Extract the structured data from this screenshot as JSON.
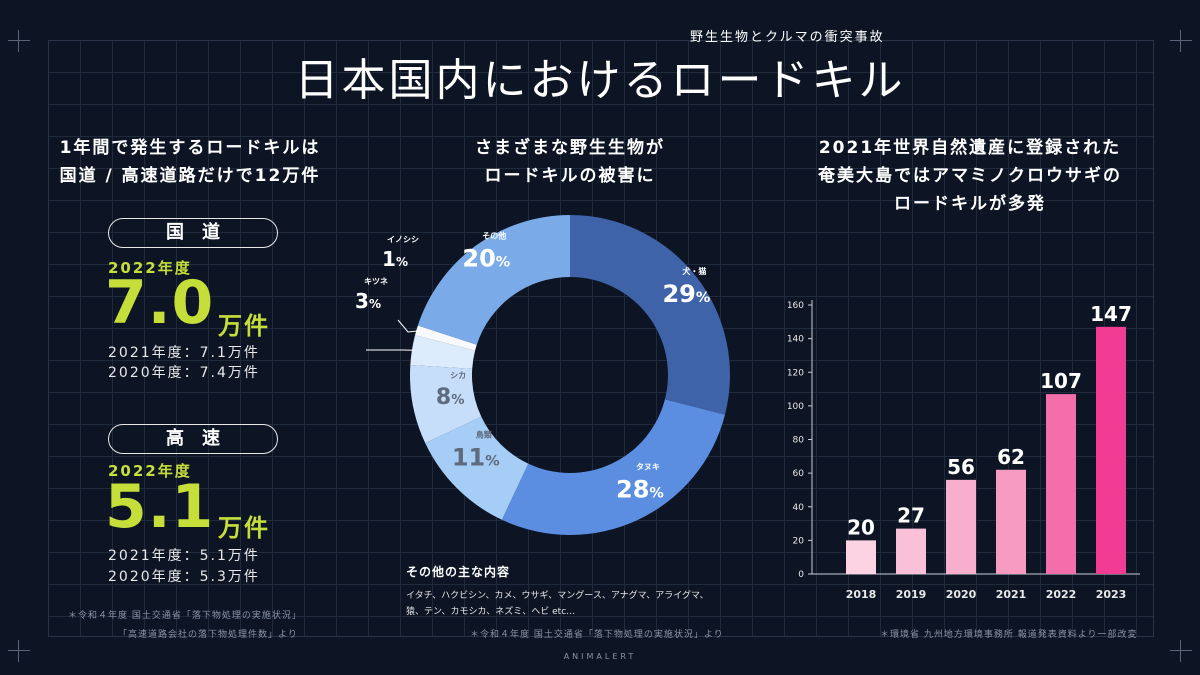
{
  "header": {
    "subtitle": "野生生物とクルマの衝突事故",
    "title": "日本国内におけるロードキル"
  },
  "left": {
    "heading_line1": "1年間で発生するロードキルは",
    "heading_line2": "国道 / 高速道路だけで12万件",
    "national": {
      "label": "国道",
      "year": "2022年度",
      "value": "7.0",
      "unit": "万件",
      "prev1": "2021年度：7.1万件",
      "prev2": "2020年度：7.4万件"
    },
    "highway": {
      "label": "高速",
      "year": "2022年度",
      "value": "5.1",
      "unit": "万件",
      "prev1": "2021年度：5.1万件",
      "prev2": "2020年度：5.3万件"
    },
    "note1": "＊令和４年度 国土交通省「落下物処理の実施状況」",
    "note2": "「高速道路会社の落下物処理件数」より"
  },
  "middle": {
    "heading_line1": "さまざまな野生生物が",
    "heading_line2": "ロードキルの被害に",
    "other_title": "その他の主な内容",
    "other_line1": "イタチ、ハクビシン、カメ、ウサギ、マングース、アナグマ、アライグマ、",
    "other_line2": "猿、テン、カモシカ、ネズミ、ヘビ etc…",
    "note": "＊令和４年度 国土交通省「落下物処理の実施状況」より"
  },
  "right": {
    "heading_line1": "2021年世界自然遺産に登録された",
    "heading_line2": "奄美大島ではアマミノクロウサギの",
    "heading_line3": "ロードキルが多発",
    "note": "＊環境省 九州地方環境事務所 報道発表資料より一部改変"
  },
  "brand": "ANIMALERT",
  "colors": {
    "background": "#0d1524",
    "accent_green": "#c5de3a"
  },
  "chart_data": [
    {
      "type": "pie",
      "title": "",
      "slices": [
        {
          "label": "犬・猫",
          "value": 29,
          "color": "#3f63a8",
          "text_color": "#ffffff"
        },
        {
          "label": "タヌキ",
          "value": 28,
          "color": "#5b8ee0",
          "text_color": "#ffffff"
        },
        {
          "label": "鳥類",
          "value": 11,
          "color": "#a6cdf5",
          "text_color": "#5f6b7d"
        },
        {
          "label": "シカ",
          "value": 8,
          "color": "#c6defa",
          "text_color": "#5f6b7d"
        },
        {
          "label": "キツネ",
          "value": 3,
          "color": "#ddecfc",
          "text_color": "#ffffff"
        },
        {
          "label": "イノシシ",
          "value": 1,
          "color": "#f7f9fc",
          "text_color": "#ffffff"
        },
        {
          "label": "その他",
          "value": 20,
          "color": "#7aabe8",
          "text_color": "#ffffff"
        }
      ]
    },
    {
      "type": "bar",
      "title": "",
      "categories": [
        "2018",
        "2019",
        "2020",
        "2021",
        "2022",
        "2023"
      ],
      "values": [
        20,
        27,
        56,
        62,
        107,
        147
      ],
      "colors": [
        "#fbd3e3",
        "#f9c0d8",
        "#f8afce",
        "#f79bc2",
        "#f46eab",
        "#f23b93"
      ],
      "xlabel": "",
      "ylabel": "",
      "ylim": [
        0,
        160
      ],
      "yticks": [
        0,
        20,
        40,
        60,
        80,
        100,
        120,
        140,
        160
      ]
    }
  ]
}
